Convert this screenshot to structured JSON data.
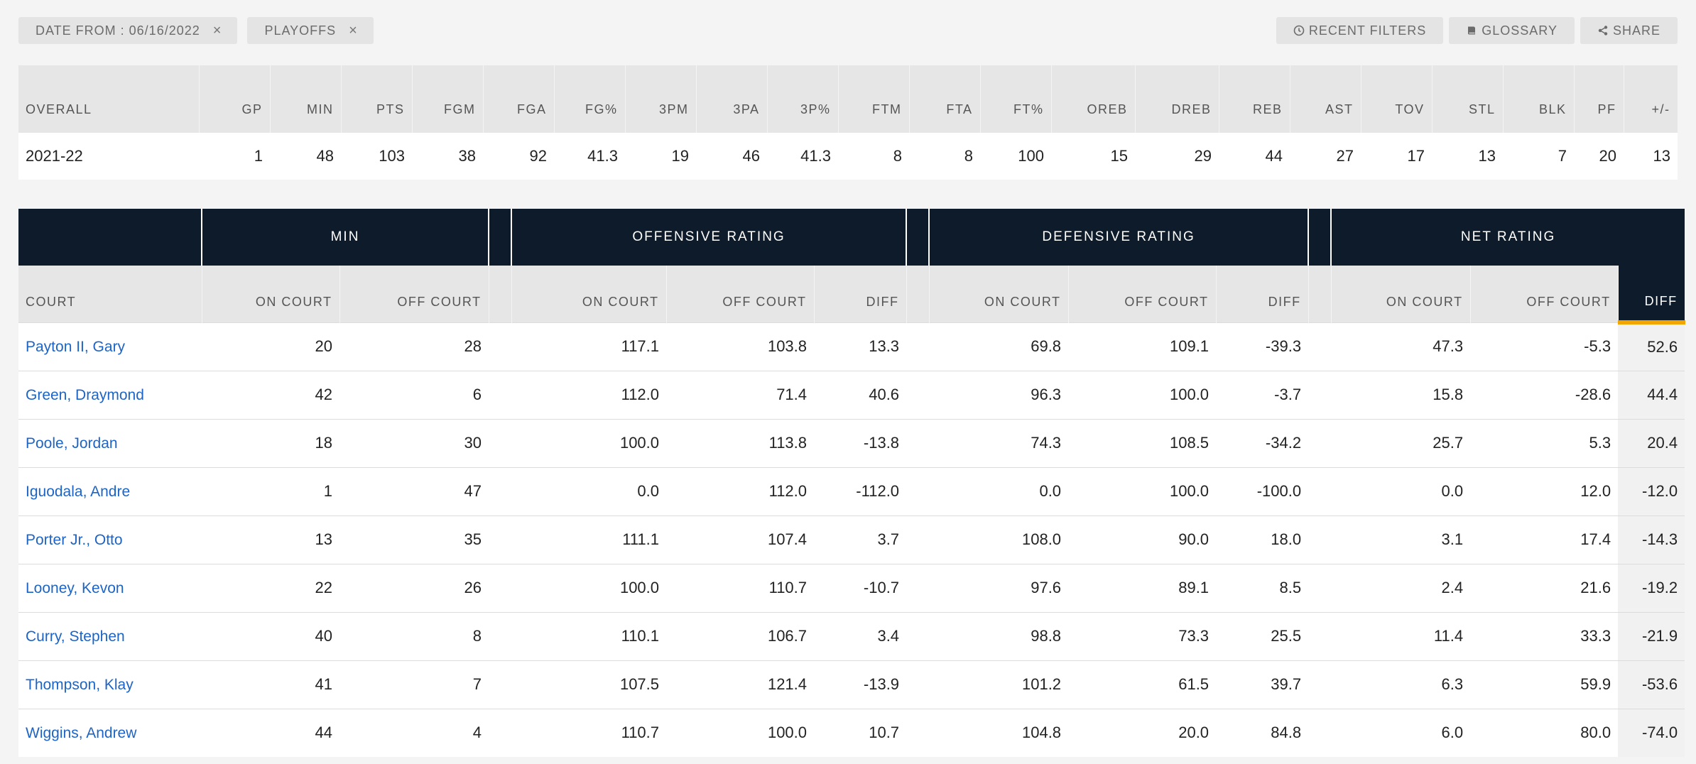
{
  "filters": [
    {
      "label": "DATE FROM : 06/16/2022",
      "remove": "×"
    },
    {
      "label": "PLAYOFFS",
      "remove": "×"
    }
  ],
  "actions": {
    "recent_filters": "RECENT FILTERS",
    "glossary": "GLOSSARY",
    "share": "SHARE"
  },
  "overall": {
    "headers": [
      "OVERALL",
      "GP",
      "MIN",
      "PTS",
      "FGM",
      "FGA",
      "FG%",
      "3PM",
      "3PA",
      "3P%",
      "FTM",
      "FTA",
      "FT%",
      "OREB",
      "DREB",
      "REB",
      "AST",
      "TOV",
      "STL",
      "BLK",
      "PF",
      "+/-"
    ],
    "row": [
      "2021-22",
      "1",
      "48",
      "103",
      "38",
      "92",
      "41.3",
      "19",
      "46",
      "41.3",
      "8",
      "8",
      "100",
      "15",
      "29",
      "44",
      "27",
      "17",
      "13",
      "7",
      "20",
      "13"
    ]
  },
  "ratings": {
    "groups": {
      "min": "MIN",
      "off": "OFFENSIVE RATING",
      "def": "DEFENSIVE RATING",
      "net": "NET RATING"
    },
    "subheaders": {
      "court": "COURT",
      "min_on": "ON COURT",
      "min_off": "OFF COURT",
      "off_on": "ON COURT",
      "off_off": "OFF COURT",
      "off_diff": "DIFF",
      "def_on": "ON COURT",
      "def_off": "OFF COURT",
      "def_diff": "DIFF",
      "net_on": "ON COURT",
      "net_off": "OFF COURT",
      "net_diff": "DIFF"
    },
    "rows": [
      {
        "player": "Payton II, Gary",
        "min_on": "20",
        "min_off": "28",
        "off_on": "117.1",
        "off_off": "103.8",
        "off_diff": "13.3",
        "def_on": "69.8",
        "def_off": "109.1",
        "def_diff": "-39.3",
        "net_on": "47.3",
        "net_off": "-5.3",
        "net_diff": "52.6"
      },
      {
        "player": "Green, Draymond",
        "min_on": "42",
        "min_off": "6",
        "off_on": "112.0",
        "off_off": "71.4",
        "off_diff": "40.6",
        "def_on": "96.3",
        "def_off": "100.0",
        "def_diff": "-3.7",
        "net_on": "15.8",
        "net_off": "-28.6",
        "net_diff": "44.4"
      },
      {
        "player": "Poole, Jordan",
        "min_on": "18",
        "min_off": "30",
        "off_on": "100.0",
        "off_off": "113.8",
        "off_diff": "-13.8",
        "def_on": "74.3",
        "def_off": "108.5",
        "def_diff": "-34.2",
        "net_on": "25.7",
        "net_off": "5.3",
        "net_diff": "20.4"
      },
      {
        "player": "Iguodala, Andre",
        "min_on": "1",
        "min_off": "47",
        "off_on": "0.0",
        "off_off": "112.0",
        "off_diff": "-112.0",
        "def_on": "0.0",
        "def_off": "100.0",
        "def_diff": "-100.0",
        "net_on": "0.0",
        "net_off": "12.0",
        "net_diff": "-12.0"
      },
      {
        "player": "Porter Jr., Otto",
        "min_on": "13",
        "min_off": "35",
        "off_on": "111.1",
        "off_off": "107.4",
        "off_diff": "3.7",
        "def_on": "108.0",
        "def_off": "90.0",
        "def_diff": "18.0",
        "net_on": "3.1",
        "net_off": "17.4",
        "net_diff": "-14.3"
      },
      {
        "player": "Looney, Kevon",
        "min_on": "22",
        "min_off": "26",
        "off_on": "100.0",
        "off_off": "110.7",
        "off_diff": "-10.7",
        "def_on": "97.6",
        "def_off": "89.1",
        "def_diff": "8.5",
        "net_on": "2.4",
        "net_off": "21.6",
        "net_diff": "-19.2"
      },
      {
        "player": "Curry, Stephen",
        "min_on": "40",
        "min_off": "8",
        "off_on": "110.1",
        "off_off": "106.7",
        "off_diff": "3.4",
        "def_on": "98.8",
        "def_off": "73.3",
        "def_diff": "25.5",
        "net_on": "11.4",
        "net_off": "33.3",
        "net_diff": "-21.9"
      },
      {
        "player": "Thompson, Klay",
        "min_on": "41",
        "min_off": "7",
        "off_on": "107.5",
        "off_off": "121.4",
        "off_diff": "-13.9",
        "def_on": "101.2",
        "def_off": "61.5",
        "def_diff": "39.7",
        "net_on": "6.3",
        "net_off": "59.9",
        "net_diff": "-53.6"
      },
      {
        "player": "Wiggins, Andrew",
        "min_on": "44",
        "min_off": "4",
        "off_on": "110.7",
        "off_off": "100.0",
        "off_diff": "10.7",
        "def_on": "104.8",
        "def_off": "20.0",
        "def_diff": "84.8",
        "net_on": "6.0",
        "net_off": "80.0",
        "net_diff": "-74.0"
      }
    ]
  },
  "colors": {
    "header_dark": "#0d1b2a",
    "sort_accent": "#f0a500",
    "link": "#1d64c4"
  }
}
